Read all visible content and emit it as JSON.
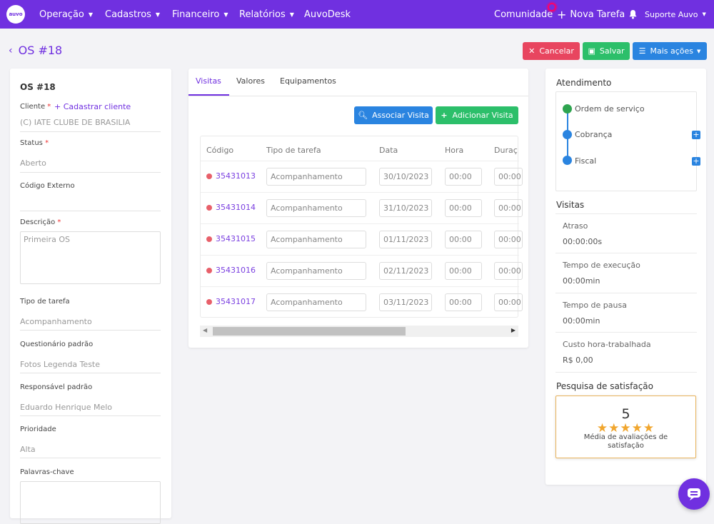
{
  "topbar": {
    "logo": "auvo",
    "menu": [
      {
        "label": "Operação",
        "chevron": true
      },
      {
        "label": "Cadastros",
        "chevron": true
      },
      {
        "label": "Financeiro",
        "chevron": true
      },
      {
        "label": "Relatórios",
        "chevron": true
      },
      {
        "label": "AuvoDesk",
        "chevron": false
      }
    ],
    "comunidade": "Comunidade",
    "nova_tarefa": "Nova Tarefa",
    "user": "Suporte Auvo"
  },
  "page": {
    "back_title": "OS #18",
    "buttons": {
      "cancelar": "Cancelar",
      "salvar": "Salvar",
      "mais_acoes": "Mais ações"
    }
  },
  "left": {
    "title": "OS #18",
    "cliente_label": "Cliente",
    "cadastrar_cliente": "+ Cadastrar cliente",
    "cliente_value": "(C) IATE CLUBE DE BRASILIA",
    "status_label": "Status",
    "status_value": "Aberto",
    "codigo_externo_label": "Código Externo",
    "descricao_label": "Descrição",
    "descricao_value": "Primeira OS",
    "tipo_tarefa_label": "Tipo de tarefa",
    "tipo_tarefa_value": "Acompanhamento",
    "questionario_label": "Questionário padrão",
    "questionario_value": "Fotos Legenda Teste",
    "responsavel_label": "Responsável padrão",
    "responsavel_value": "Eduardo Henrique Melo",
    "prioridade_label": "Prioridade",
    "prioridade_value": "Alta",
    "palavras_label": "Palavras-chave"
  },
  "middle": {
    "tabs": [
      "Visitas",
      "Valores",
      "Equipamentos"
    ],
    "associar": "Associar Visita",
    "adicionar": "Adicionar Visita",
    "columns": [
      "Código",
      "Tipo de tarefa",
      "Data",
      "Hora",
      "Duraç"
    ],
    "rows": [
      {
        "code": "35431013",
        "tipo": "Acompanhamento",
        "data": "30/10/2023",
        "hora": "00:00",
        "dur": "00:00"
      },
      {
        "code": "35431014",
        "tipo": "Acompanhamento",
        "data": "31/10/2023",
        "hora": "00:00",
        "dur": "00:00"
      },
      {
        "code": "35431015",
        "tipo": "Acompanhamento",
        "data": "01/11/2023",
        "hora": "00:00",
        "dur": "00:00"
      },
      {
        "code": "35431016",
        "tipo": "Acompanhamento",
        "data": "02/11/2023",
        "hora": "00:00",
        "dur": "00:00"
      },
      {
        "code": "35431017",
        "tipo": "Acompanhamento",
        "data": "03/11/2023",
        "hora": "00:00",
        "dur": "00:00"
      }
    ]
  },
  "right": {
    "atendimento": "Atendimento",
    "steps": [
      "Ordem de serviço",
      "Cobrança",
      "Fiscal"
    ],
    "visitas": "Visitas",
    "metrics": [
      {
        "title": "Atraso",
        "value": "00:00:00s"
      },
      {
        "title": "Tempo de execução",
        "value": "00:00min"
      },
      {
        "title": "Tempo de pausa",
        "value": "00:00min"
      },
      {
        "title": "Custo hora-trabalhada",
        "value": "R$ 0,00"
      }
    ],
    "pesquisa": "Pesquisa de satisfação",
    "score": "5",
    "stars": 5,
    "media": "Média de avaliações de satisfação"
  },
  "colors": {
    "brand": "#7030e0",
    "cancel": "#e8455f",
    "save": "#2cbf6a",
    "primary": "#2a84e0"
  }
}
